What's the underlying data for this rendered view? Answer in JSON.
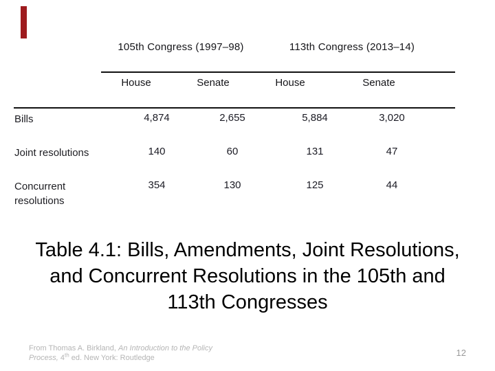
{
  "slide": {
    "background": "#ffffff",
    "accent_bar_color": "#9e1b1e",
    "page_number": "12"
  },
  "table": {
    "group_headers": [
      "105th Congress (1997–98)",
      "113th Congress (2013–14)"
    ],
    "col_headers": [
      "House",
      "Senate",
      "House",
      "Senate"
    ],
    "rows": [
      {
        "label": "Bills",
        "values": [
          "4,874",
          "2,655",
          "5,884",
          "3,020"
        ]
      },
      {
        "label": "Joint resolutions",
        "values": [
          "140",
          "60",
          "131",
          "47"
        ]
      },
      {
        "label": "Concurrent resolutions",
        "values": [
          "354",
          "130",
          "125",
          "44"
        ]
      }
    ],
    "text_color": "#1d1d22",
    "rule_color": "#101010"
  },
  "caption": {
    "lines": [
      "Table 4.1: Bills, Amendments, Joint Resolutions,",
      "and Concurrent Resolutions in the 105th and",
      "113th Congresses"
    ],
    "color": "#000000"
  },
  "footnote": {
    "prefix": "From Thomas A. Birkland, ",
    "title_line1": "An Introduction to the Policy",
    "title_line2": "Process,",
    "edition_number": " 4",
    "edition_sup": "th",
    "suffix": " ed. New York: Routledge",
    "color": "#b5b5b5"
  }
}
